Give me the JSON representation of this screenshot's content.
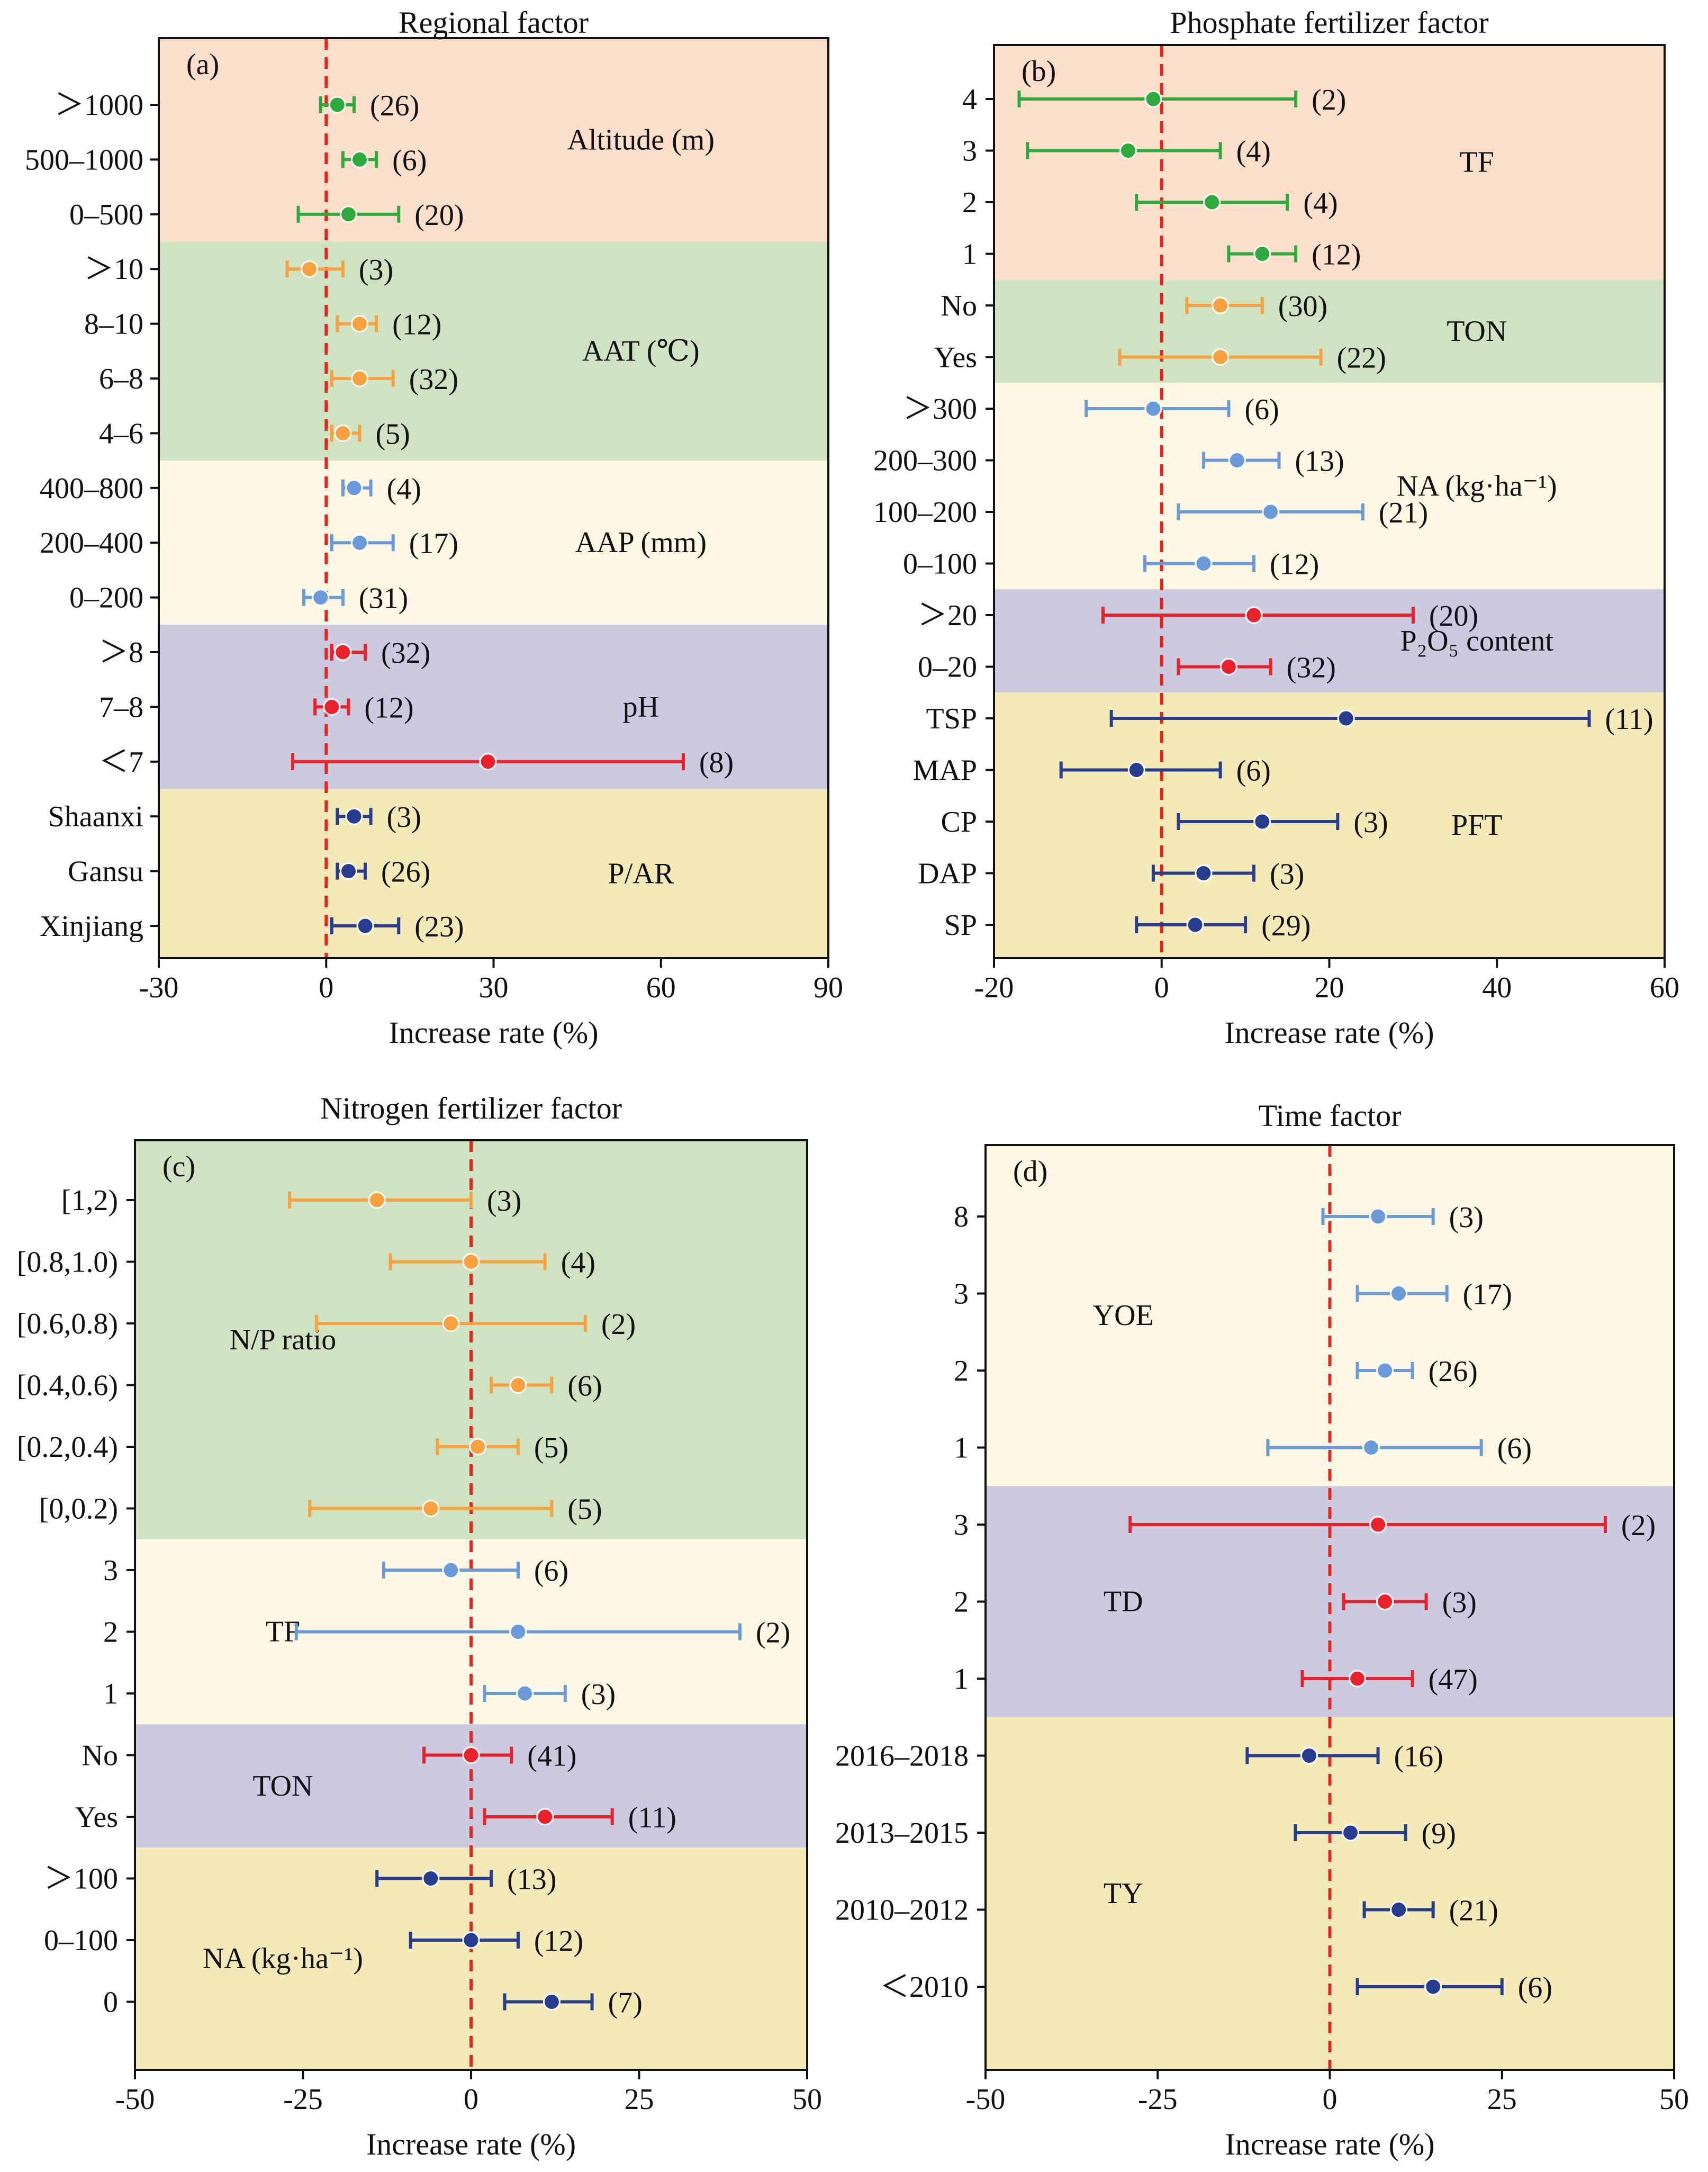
{
  "colors": {
    "bands": {
      "orange": "#FBDFCB",
      "green": "#CFE2C2",
      "cream": "#FCF8E3",
      "purple": "#CBCAE0",
      "yellow": "#F4EAB8"
    },
    "series": {
      "green": "#2EAA3C",
      "orange": "#F7A13F",
      "blue": "#6A9BD8",
      "red": "#E8212A",
      "navy": "#263E8D"
    },
    "refline": "#E8251B"
  },
  "chart_data": [
    {
      "panel": "(a)",
      "type": "forest",
      "title": "Regional factor",
      "xlabel": "Increase rate (%)",
      "xlim": [
        -30,
        90
      ],
      "xticks": [
        "-30",
        "0",
        "30",
        "60",
        "90"
      ],
      "xtick_values": [
        -30,
        0,
        30,
        60,
        90
      ],
      "groups": [
        {
          "name": "Altitude (m)",
          "band": "orange",
          "color": "green",
          "rows": [
            {
              "label": "＞1000",
              "mean": 2,
              "lo": -1,
              "hi": 5,
              "n": "(26)"
            },
            {
              "label": "500–1000",
              "mean": 6,
              "lo": 3,
              "hi": 9,
              "n": "(6)"
            },
            {
              "label": "0–500",
              "mean": 4,
              "lo": -5,
              "hi": 13,
              "n": "(20)"
            }
          ]
        },
        {
          "name": "AAT (℃)",
          "band": "green",
          "color": "orange",
          "rows": [
            {
              "label": "＞10",
              "mean": -3,
              "lo": -7,
              "hi": 3,
              "n": "(3)"
            },
            {
              "label": "8–10",
              "mean": 6,
              "lo": 2,
              "hi": 9,
              "n": "(12)"
            },
            {
              "label": "6–8",
              "mean": 6,
              "lo": 1,
              "hi": 12,
              "n": "(32)"
            },
            {
              "label": "4–6",
              "mean": 3,
              "lo": 1,
              "hi": 6,
              "n": "(5)"
            }
          ]
        },
        {
          "name": "AAP (mm)",
          "band": "cream",
          "color": "blue",
          "rows": [
            {
              "label": "400–800",
              "mean": 5,
              "lo": 3,
              "hi": 8,
              "n": "(4)"
            },
            {
              "label": "200–400",
              "mean": 6,
              "lo": 1,
              "hi": 12,
              "n": "(17)"
            },
            {
              "label": "0–200",
              "mean": -1,
              "lo": -4,
              "hi": 3,
              "n": "(31)"
            }
          ]
        },
        {
          "name": "pH",
          "band": "purple",
          "color": "red",
          "rows": [
            {
              "label": "＞8",
              "mean": 3,
              "lo": 1,
              "hi": 7,
              "n": "(32)"
            },
            {
              "label": "7–8",
              "mean": 1,
              "lo": -2,
              "hi": 4,
              "n": "(12)"
            },
            {
              "label": "＜7",
              "mean": 29,
              "lo": -6,
              "hi": 64,
              "n": "(8)"
            }
          ]
        },
        {
          "name": "P/AR",
          "band": "yellow",
          "color": "navy",
          "rows": [
            {
              "label": "Shaanxi",
              "mean": 5,
              "lo": 2,
              "hi": 8,
              "n": "(3)"
            },
            {
              "label": "Gansu",
              "mean": 4,
              "lo": 2,
              "hi": 7,
              "n": "(26)"
            },
            {
              "label": "Xinjiang",
              "mean": 7,
              "lo": 1,
              "hi": 13,
              "n": "(23)"
            }
          ]
        }
      ]
    },
    {
      "panel": "(b)",
      "type": "forest",
      "title": "Phosphate fertilizer factor",
      "xlabel": "Increase rate (%)",
      "xlim": [
        -20,
        60
      ],
      "xticks": [
        "-20",
        "0",
        "20",
        "40",
        "60"
      ],
      "xtick_values": [
        -20,
        0,
        20,
        40,
        60
      ],
      "groups": [
        {
          "name": "TF",
          "band": "orange",
          "color": "green",
          "rows": [
            {
              "label": "4",
              "mean": -1,
              "lo": -17,
              "hi": 16,
              "n": "(2)"
            },
            {
              "label": "3",
              "mean": -4,
              "lo": -16,
              "hi": 7,
              "n": "(4)"
            },
            {
              "label": "2",
              "mean": 6,
              "lo": -3,
              "hi": 15,
              "n": "(4)"
            },
            {
              "label": "1",
              "mean": 12,
              "lo": 8,
              "hi": 16,
              "n": "(12)"
            }
          ]
        },
        {
          "name": "TON",
          "band": "green",
          "color": "orange",
          "rows": [
            {
              "label": "No",
              "mean": 7,
              "lo": 3,
              "hi": 12,
              "n": "(30)"
            },
            {
              "label": "Yes",
              "mean": 7,
              "lo": -5,
              "hi": 19,
              "n": "(22)"
            }
          ]
        },
        {
          "name": "NA (kg·ha⁻¹)",
          "band": "cream",
          "color": "blue",
          "rows": [
            {
              "label": "＞300",
              "mean": -1,
              "lo": -9,
              "hi": 8,
              "n": "(6)"
            },
            {
              "label": "200–300",
              "mean": 9,
              "lo": 5,
              "hi": 14,
              "n": "(13)"
            },
            {
              "label": "100–200",
              "mean": 13,
              "lo": 2,
              "hi": 24,
              "n": "(21)"
            },
            {
              "label": "0–100",
              "mean": 5,
              "lo": -2,
              "hi": 11,
              "n": "(12)"
            }
          ]
        },
        {
          "name": "P₂O₅ content",
          "band": "purple",
          "color": "red",
          "rows": [
            {
              "label": "＞20",
              "mean": 11,
              "lo": -7,
              "hi": 30,
              "n": "(20)"
            },
            {
              "label": "0–20",
              "mean": 8,
              "lo": 2,
              "hi": 13,
              "n": "(32)"
            }
          ]
        },
        {
          "name": "PFT",
          "band": "yellow",
          "color": "navy",
          "rows": [
            {
              "label": "TSP",
              "mean": 22,
              "lo": -6,
              "hi": 51,
              "n": "(11)"
            },
            {
              "label": "MAP",
              "mean": -3,
              "lo": -12,
              "hi": 7,
              "n": "(6)"
            },
            {
              "label": "CP",
              "mean": 12,
              "lo": 2,
              "hi": 21,
              "n": "(3)"
            },
            {
              "label": "DAP",
              "mean": 5,
              "lo": -1,
              "hi": 11,
              "n": "(3)"
            },
            {
              "label": "SP",
              "mean": 4,
              "lo": -3,
              "hi": 10,
              "n": "(29)"
            }
          ]
        }
      ]
    },
    {
      "panel": "(c)",
      "type": "forest",
      "title": "Nitrogen fertilizer factor",
      "xlabel": "Increase rate (%)",
      "xlim": [
        -50,
        50
      ],
      "xticks": [
        "-50",
        "-25",
        "0",
        "25",
        "50"
      ],
      "xtick_values": [
        -50,
        -25,
        0,
        25,
        50
      ],
      "groups": [
        {
          "name": "N/P ratio",
          "band": "green",
          "color": "orange",
          "rows": [
            {
              "label": "[1,2)",
              "mean": -14,
              "lo": -27,
              "hi": 0,
              "n": "(3)"
            },
            {
              "label": "[0.8,1.0)",
              "mean": 0,
              "lo": -12,
              "hi": 11,
              "n": "(4)"
            },
            {
              "label": "[0.6,0.8)",
              "mean": -3,
              "lo": -23,
              "hi": 17,
              "n": "(2)"
            },
            {
              "label": "[0.4,0.6)",
              "mean": 7,
              "lo": 3,
              "hi": 12,
              "n": "(6)"
            },
            {
              "label": "[0.2,0.4)",
              "mean": 1,
              "lo": -5,
              "hi": 7,
              "n": "(5)"
            },
            {
              "label": "[0,0.2)",
              "mean": -6,
              "lo": -24,
              "hi": 12,
              "n": "(5)"
            }
          ]
        },
        {
          "name": "TF",
          "band": "cream",
          "color": "blue",
          "rows": [
            {
              "label": "3",
              "mean": -3,
              "lo": -13,
              "hi": 7,
              "n": "(6)"
            },
            {
              "label": "2",
              "mean": 7,
              "lo": -26,
              "hi": 40,
              "n": "(2)"
            },
            {
              "label": "1",
              "mean": 8,
              "lo": 2,
              "hi": 14,
              "n": "(3)"
            }
          ]
        },
        {
          "name": "TON",
          "band": "purple",
          "color": "red",
          "rows": [
            {
              "label": "No",
              "mean": 0,
              "lo": -7,
              "hi": 6,
              "n": "(41)"
            },
            {
              "label": "Yes",
              "mean": 11,
              "lo": 2,
              "hi": 21,
              "n": "(11)"
            }
          ]
        },
        {
          "name": "NA (kg·ha⁻¹)",
          "band": "yellow",
          "color": "navy",
          "rows": [
            {
              "label": "＞100",
              "mean": -6,
              "lo": -14,
              "hi": 3,
              "n": "(13)"
            },
            {
              "label": "0–100",
              "mean": 0,
              "lo": -9,
              "hi": 7,
              "n": "(12)"
            },
            {
              "label": "0",
              "mean": 12,
              "lo": 5,
              "hi": 18,
              "n": "(7)"
            }
          ]
        }
      ]
    },
    {
      "panel": "(d)",
      "type": "forest",
      "title": "Time factor",
      "xlabel": "Increase rate (%)",
      "xlim": [
        -50,
        50
      ],
      "xticks": [
        "-50",
        "-25",
        "0",
        "25",
        "50"
      ],
      "xtick_values": [
        -50,
        -25,
        0,
        25,
        50
      ],
      "groups": [
        {
          "name": "YOE",
          "band": "cream",
          "color": "blue",
          "rows": [
            {
              "label": "8",
              "mean": 7,
              "lo": -1,
              "hi": 15,
              "n": "(3)"
            },
            {
              "label": "3",
              "mean": 10,
              "lo": 4,
              "hi": 17,
              "n": "(17)"
            },
            {
              "label": "2",
              "mean": 8,
              "lo": 4,
              "hi": 12,
              "n": "(26)"
            },
            {
              "label": "1",
              "mean": 6,
              "lo": -9,
              "hi": 22,
              "n": "(6)"
            }
          ]
        },
        {
          "name": "TD",
          "band": "purple",
          "color": "red",
          "rows": [
            {
              "label": "3",
              "mean": 7,
              "lo": -29,
              "hi": 40,
              "n": "(2)"
            },
            {
              "label": "2",
              "mean": 8,
              "lo": 2,
              "hi": 14,
              "n": "(3)"
            },
            {
              "label": "1",
              "mean": 4,
              "lo": -4,
              "hi": 12,
              "n": "(47)"
            }
          ]
        },
        {
          "name": "TY",
          "band": "yellow",
          "color": "navy",
          "rows": [
            {
              "label": "2016–2018",
              "mean": -3,
              "lo": -12,
              "hi": 7,
              "n": "(16)"
            },
            {
              "label": "2013–2015",
              "mean": 3,
              "lo": -5,
              "hi": 11,
              "n": "(9)"
            },
            {
              "label": "2010–2012",
              "mean": 10,
              "lo": 5,
              "hi": 15,
              "n": "(21)"
            },
            {
              "label": "＜2010",
              "mean": 15,
              "lo": 4,
              "hi": 25,
              "n": "(6)"
            }
          ]
        }
      ]
    }
  ]
}
